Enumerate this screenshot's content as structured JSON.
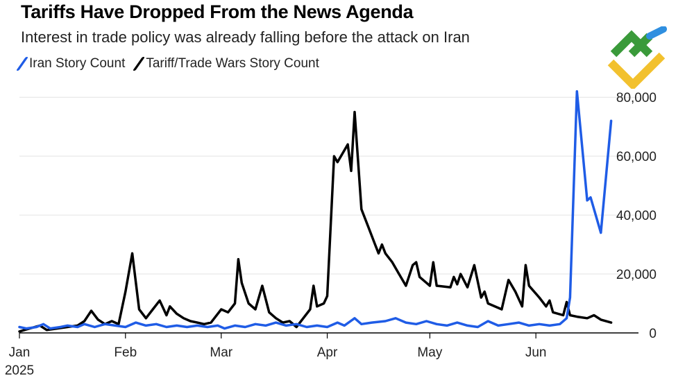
{
  "header": {
    "title": "Tariffs Have Dropped From the News Agenda",
    "subtitle": "Interest in trade policy was already falling before the attack on Iran"
  },
  "chart_data": {
    "type": "line",
    "title": "Tariffs Have Dropped From the News Agenda",
    "subtitle": "Interest in trade policy was already falling before the attack on Iran",
    "xlabel": "",
    "ylabel": "",
    "xlim": [
      "2025-01-01",
      "2025-07-01"
    ],
    "ylim": [
      0,
      85000
    ],
    "yticks": [
      0,
      20000,
      40000,
      60000,
      80000
    ],
    "ytick_labels": [
      "0",
      "20,000",
      "40,000",
      "60,000",
      "80,000"
    ],
    "xticks": [
      {
        "date": "2025-01-01",
        "label": "Jan",
        "sublabel": "2025"
      },
      {
        "date": "2025-02-01",
        "label": "Feb"
      },
      {
        "date": "2025-03-01",
        "label": "Mar"
      },
      {
        "date": "2025-04-01",
        "label": "Apr"
      },
      {
        "date": "2025-05-01",
        "label": "May"
      },
      {
        "date": "2025-06-01",
        "label": "Jun"
      }
    ],
    "grid": true,
    "legend": "top-left",
    "series": [
      {
        "name": "Iran Story Count",
        "color": "#1f5ce6",
        "points": [
          [
            "2025-01-01",
            2000
          ],
          [
            "2025-01-03",
            1500
          ],
          [
            "2025-01-06",
            2000
          ],
          [
            "2025-01-08",
            3000
          ],
          [
            "2025-01-10",
            1500
          ],
          [
            "2025-01-13",
            2000
          ],
          [
            "2025-01-15",
            2500
          ],
          [
            "2025-01-18",
            2000
          ],
          [
            "2025-01-20",
            3000
          ],
          [
            "2025-01-23",
            2000
          ],
          [
            "2025-01-26",
            3000
          ],
          [
            "2025-01-29",
            2500
          ],
          [
            "2025-02-01",
            2000
          ],
          [
            "2025-02-04",
            3500
          ],
          [
            "2025-02-07",
            2500
          ],
          [
            "2025-02-10",
            3000
          ],
          [
            "2025-02-13",
            2000
          ],
          [
            "2025-02-16",
            2500
          ],
          [
            "2025-02-19",
            2000
          ],
          [
            "2025-02-22",
            2500
          ],
          [
            "2025-02-25",
            2000
          ],
          [
            "2025-02-28",
            2500
          ],
          [
            "2025-03-02",
            1500
          ],
          [
            "2025-03-05",
            2500
          ],
          [
            "2025-03-08",
            2000
          ],
          [
            "2025-03-11",
            3000
          ],
          [
            "2025-03-14",
            2500
          ],
          [
            "2025-03-17",
            3500
          ],
          [
            "2025-03-20",
            2500
          ],
          [
            "2025-03-23",
            3000
          ],
          [
            "2025-03-26",
            2000
          ],
          [
            "2025-03-29",
            2500
          ],
          [
            "2025-04-01",
            2000
          ],
          [
            "2025-04-04",
            3500
          ],
          [
            "2025-04-06",
            2500
          ],
          [
            "2025-04-09",
            5000
          ],
          [
            "2025-04-11",
            3000
          ],
          [
            "2025-04-14",
            3500
          ],
          [
            "2025-04-18",
            4000
          ],
          [
            "2025-04-21",
            5000
          ],
          [
            "2025-04-24",
            3500
          ],
          [
            "2025-04-27",
            3000
          ],
          [
            "2025-04-30",
            4000
          ],
          [
            "2025-05-03",
            3000
          ],
          [
            "2025-05-06",
            2500
          ],
          [
            "2025-05-09",
            3500
          ],
          [
            "2025-05-12",
            2500
          ],
          [
            "2025-05-15",
            2000
          ],
          [
            "2025-05-18",
            4000
          ],
          [
            "2025-05-21",
            2500
          ],
          [
            "2025-05-24",
            3000
          ],
          [
            "2025-05-27",
            3500
          ],
          [
            "2025-05-30",
            2500
          ],
          [
            "2025-06-02",
            3000
          ],
          [
            "2025-06-05",
            2500
          ],
          [
            "2025-06-08",
            3000
          ],
          [
            "2025-06-10",
            5000
          ],
          [
            "2025-06-11",
            12000
          ],
          [
            "2025-06-13",
            82000
          ],
          [
            "2025-06-16",
            45000
          ],
          [
            "2025-06-17",
            46000
          ],
          [
            "2025-06-20",
            34000
          ],
          [
            "2025-06-23",
            72000
          ]
        ]
      },
      {
        "name": "Tariff/Trade Wars Story Count",
        "color": "#000000",
        "points": [
          [
            "2025-01-01",
            500
          ],
          [
            "2025-01-04",
            1500
          ],
          [
            "2025-01-07",
            2500
          ],
          [
            "2025-01-09",
            1000
          ],
          [
            "2025-01-12",
            1500
          ],
          [
            "2025-01-15",
            2000
          ],
          [
            "2025-01-18",
            2500
          ],
          [
            "2025-01-20",
            4000
          ],
          [
            "2025-01-22",
            7500
          ],
          [
            "2025-01-24",
            4500
          ],
          [
            "2025-01-26",
            3000
          ],
          [
            "2025-01-28",
            4000
          ],
          [
            "2025-01-30",
            3000
          ],
          [
            "2025-02-01",
            14000
          ],
          [
            "2025-02-03",
            27000
          ],
          [
            "2025-02-05",
            8000
          ],
          [
            "2025-02-07",
            5000
          ],
          [
            "2025-02-09",
            8000
          ],
          [
            "2025-02-11",
            11000
          ],
          [
            "2025-02-13",
            6000
          ],
          [
            "2025-02-14",
            9000
          ],
          [
            "2025-02-16",
            6500
          ],
          [
            "2025-02-18",
            5000
          ],
          [
            "2025-02-20",
            4000
          ],
          [
            "2025-02-22",
            3500
          ],
          [
            "2025-02-24",
            3000
          ],
          [
            "2025-02-26",
            3500
          ],
          [
            "2025-02-28",
            6500
          ],
          [
            "2025-03-01",
            8000
          ],
          [
            "2025-03-03",
            7000
          ],
          [
            "2025-03-05",
            10000
          ],
          [
            "2025-03-06",
            25000
          ],
          [
            "2025-03-07",
            17000
          ],
          [
            "2025-03-09",
            10000
          ],
          [
            "2025-03-11",
            8000
          ],
          [
            "2025-03-13",
            16000
          ],
          [
            "2025-03-15",
            7000
          ],
          [
            "2025-03-17",
            5000
          ],
          [
            "2025-03-19",
            3500
          ],
          [
            "2025-03-21",
            4000
          ],
          [
            "2025-03-23",
            2000
          ],
          [
            "2025-03-25",
            5000
          ],
          [
            "2025-03-27",
            8000
          ],
          [
            "2025-03-28",
            16000
          ],
          [
            "2025-03-29",
            9000
          ],
          [
            "2025-03-31",
            10000
          ],
          [
            "2025-04-01",
            12500
          ],
          [
            "2025-04-03",
            60000
          ],
          [
            "2025-04-04",
            58000
          ],
          [
            "2025-04-06",
            62000
          ],
          [
            "2025-04-07",
            64000
          ],
          [
            "2025-04-08",
            55000
          ],
          [
            "2025-04-09",
            75000
          ],
          [
            "2025-04-11",
            42000
          ],
          [
            "2025-04-13",
            36000
          ],
          [
            "2025-04-15",
            30000
          ],
          [
            "2025-04-16",
            27000
          ],
          [
            "2025-04-17",
            30000
          ],
          [
            "2025-04-18",
            27000
          ],
          [
            "2025-04-20",
            24000
          ],
          [
            "2025-04-22",
            20000
          ],
          [
            "2025-04-24",
            16000
          ],
          [
            "2025-04-26",
            23000
          ],
          [
            "2025-04-27",
            24000
          ],
          [
            "2025-04-28",
            19000
          ],
          [
            "2025-04-30",
            17000
          ],
          [
            "2025-05-01",
            16000
          ],
          [
            "2025-05-02",
            24000
          ],
          [
            "2025-05-03",
            16000
          ],
          [
            "2025-05-07",
            15500
          ],
          [
            "2025-05-08",
            19000
          ],
          [
            "2025-05-09",
            16500
          ],
          [
            "2025-05-10",
            20000
          ],
          [
            "2025-05-12",
            15500
          ],
          [
            "2025-05-14",
            23000
          ],
          [
            "2025-05-16",
            12000
          ],
          [
            "2025-05-17",
            14000
          ],
          [
            "2025-05-18",
            10000
          ],
          [
            "2025-05-22",
            8000
          ],
          [
            "2025-05-24",
            18000
          ],
          [
            "2025-05-26",
            14000
          ],
          [
            "2025-05-28",
            9000
          ],
          [
            "2025-05-29",
            23000
          ],
          [
            "2025-05-30",
            16000
          ],
          [
            "2025-06-02",
            12000
          ],
          [
            "2025-06-04",
            9000
          ],
          [
            "2025-06-05",
            11000
          ],
          [
            "2025-06-06",
            7000
          ],
          [
            "2025-06-09",
            6000
          ],
          [
            "2025-06-10",
            10500
          ],
          [
            "2025-06-11",
            6000
          ],
          [
            "2025-06-13",
            5500
          ],
          [
            "2025-06-16",
            5000
          ],
          [
            "2025-06-18",
            6000
          ],
          [
            "2025-06-20",
            4500
          ],
          [
            "2025-06-23",
            3500
          ]
        ]
      }
    ]
  }
}
